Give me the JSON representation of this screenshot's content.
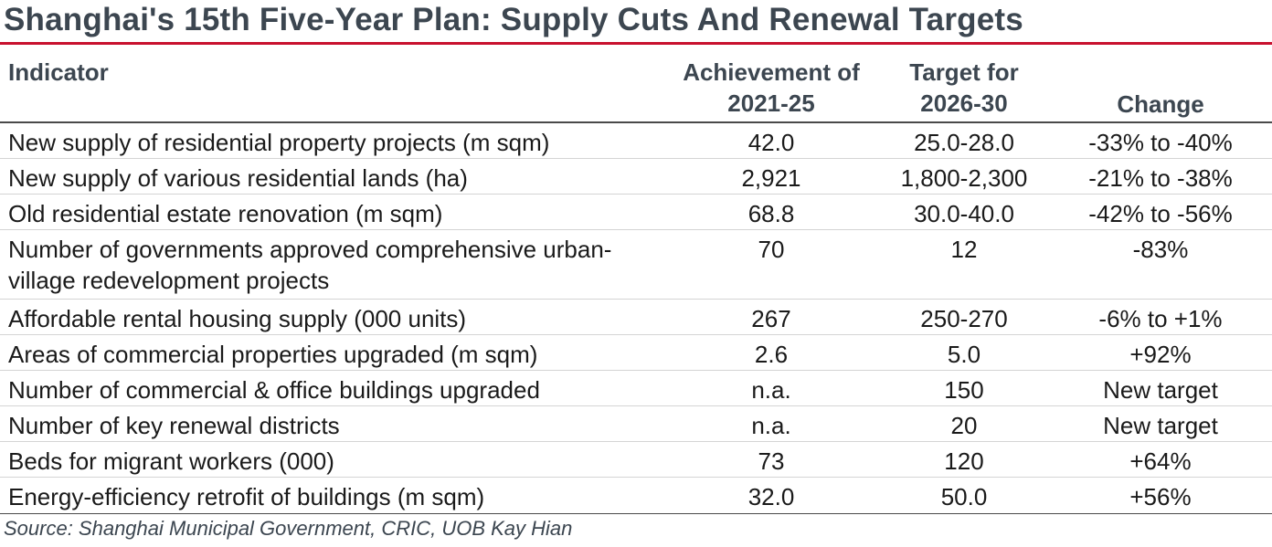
{
  "title": "Shanghai's 15th Five-Year Plan: Supply Cuts And Renewal Targets",
  "colors": {
    "title": "#3c4650",
    "accent_rule": "#c8102e"
  },
  "table": {
    "headers": {
      "indicator": "Indicator",
      "achievement_line1": "Achievement of",
      "achievement_line2": "2021-25",
      "target_line1": "Target for",
      "target_line2": "2026-30",
      "change": "Change"
    },
    "rows": [
      {
        "indicator": "New supply of residential property projects (m sqm)",
        "achievement": "42.0",
        "target": "25.0-28.0",
        "change": "-33% to -40%"
      },
      {
        "indicator": "New supply of various residential lands (ha)",
        "achievement": "2,921",
        "target": "1,800-2,300",
        "change": "-21% to -38%"
      },
      {
        "indicator": "Old residential estate renovation (m sqm)",
        "achievement": "68.8",
        "target": "30.0-40.0",
        "change": "-42% to -56%"
      },
      {
        "indicator": "Number of governments approved comprehensive urban-village redevelopment projects",
        "achievement": "70",
        "target": "12",
        "change": "-83%"
      },
      {
        "indicator": "Affordable rental housing supply (000 units)",
        "achievement": "267",
        "target": "250-270",
        "change": "-6% to +1%"
      },
      {
        "indicator": "Areas of commercial properties upgraded (m sqm)",
        "achievement": "2.6",
        "target": "5.0",
        "change": "+92%"
      },
      {
        "indicator": "Number of commercial & office buildings upgraded",
        "achievement": "n.a.",
        "target": "150",
        "change": "New target"
      },
      {
        "indicator": "Number of key renewal districts",
        "achievement": "n.a.",
        "target": "20",
        "change": "New target"
      },
      {
        "indicator": "Beds for migrant workers (000)",
        "achievement": "73",
        "target": "120",
        "change": "+64%"
      },
      {
        "indicator": "Energy-efficiency retrofit of buildings (m sqm)",
        "achievement": "32.0",
        "target": "50.0",
        "change": "+56%"
      }
    ]
  },
  "source": "Source: Shanghai Municipal Government, CRIC, UOB Kay Hian"
}
